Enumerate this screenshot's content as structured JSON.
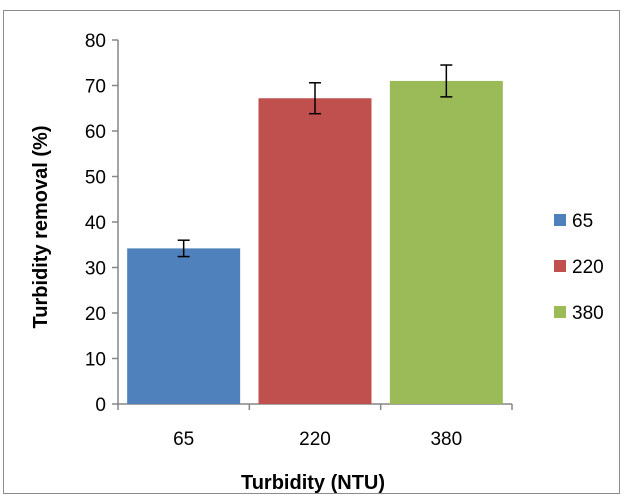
{
  "chart_data": {
    "type": "bar",
    "title": "",
    "xlabel": "Turbidity (NTU)",
    "ylabel": "Turbidity removal (%)",
    "categories": [
      "65",
      "220",
      "380"
    ],
    "values": [
      34.2,
      67.2,
      71.0
    ],
    "errors": [
      1.8,
      3.4,
      3.5
    ],
    "colors": [
      "#4f81bd",
      "#c0504d",
      "#9bbb59"
    ],
    "ylim": [
      0,
      80
    ],
    "yticks": [
      0,
      10,
      20,
      30,
      40,
      50,
      60,
      70,
      80
    ],
    "grid": false,
    "legend": {
      "position": "right",
      "entries": [
        "65",
        "220",
        "380"
      ]
    }
  }
}
